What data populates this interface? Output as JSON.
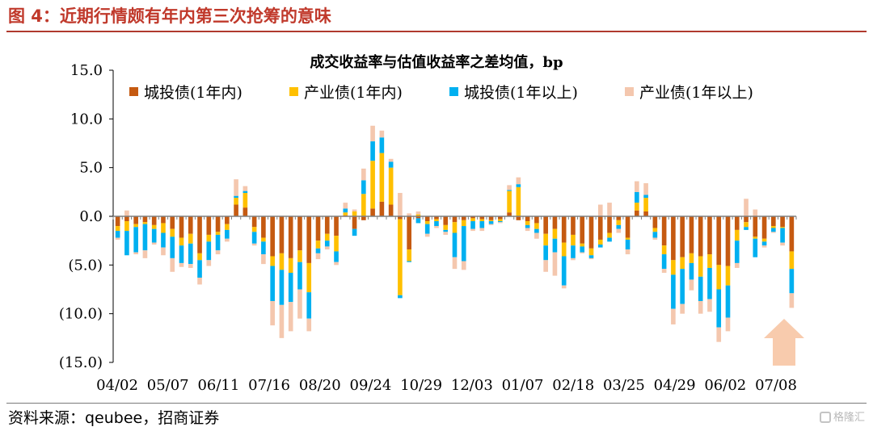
{
  "figure_title": "图 4：近期行情颇有年内第三次抢筹的意味",
  "source": "资料来源：qeubee，招商证券",
  "watermark": "格隆汇",
  "colors": {
    "title": "#c0392b",
    "chengtou_1y_in": "#c55a11",
    "chanye_1y_in": "#ffc000",
    "chengtou_1y_plus": "#00b0f0",
    "chanye_1y_plus": "#f4c7ae",
    "arrow": "#f8cbad"
  },
  "chart_data": {
    "type": "bar",
    "stacked": true,
    "title": "成交收益率与估值收益率之差均值，bp",
    "ylim": [
      -15,
      15
    ],
    "yticks": [
      15,
      10,
      5,
      0,
      -5,
      -10,
      -15
    ],
    "ytick_labels": [
      "15.0",
      "10.0",
      "5.0",
      "0.0",
      "(5.0)",
      "(10.0)",
      "(15.0)"
    ],
    "xtick_labels": [
      "04/02",
      "05/07",
      "06/11",
      "07/16",
      "08/20",
      "09/24",
      "10/29",
      "12/03",
      "01/07",
      "02/18",
      "03/25",
      "04/29",
      "06/02",
      "07/08"
    ],
    "legend_position": "top",
    "series": [
      {
        "name": "城投债(1年内)",
        "color": "#c55a11",
        "values": [
          -1.0,
          -0.5,
          -0.8,
          -0.6,
          -0.9,
          -0.7,
          -1.3,
          -2.2,
          -1.8,
          -3.8,
          -1.9,
          -1.6,
          -0.8,
          1.2,
          0.9,
          -1.1,
          -2.2,
          -4.1,
          -3.8,
          -4.3,
          -3.5,
          -4.8,
          -2.5,
          -1.8,
          -2.0,
          0.1,
          -1.3,
          -0.4,
          0.8,
          1.5,
          1.2,
          -0.3,
          -3.4,
          -0.2,
          -0.5,
          -0.3,
          -0.9,
          -0.6,
          -0.4,
          -0.2,
          -0.3,
          -0.4,
          -0.3,
          0.4,
          -0.4,
          -0.5,
          -0.7,
          -1.8,
          -1.3,
          -2.7,
          -1.9,
          -2.8,
          -3.3,
          -2.4,
          -1.7,
          -0.4,
          -2.2,
          0.6,
          0.5,
          -1.2,
          -3.0,
          -4.5,
          -4.2,
          -3.8,
          -4.1,
          -3.9,
          -5.0,
          -5.1,
          -1.4,
          -0.6,
          -2.1,
          -2.3,
          -1.0,
          -1.1,
          -3.6
        ],
        "labels_hidden": true
      },
      {
        "name": "产业债(1年内)",
        "color": "#ffc000",
        "values": [
          -0.5,
          -1.0,
          -0.3,
          -0.2,
          -0.4,
          -1.0,
          -0.8,
          -0.8,
          -1.0,
          -0.7,
          -0.7,
          -0.3,
          -0.6,
          0.7,
          1.5,
          -0.5,
          -0.4,
          -1.0,
          -1.7,
          -1.5,
          -1.2,
          -3.0,
          -0.8,
          -0.7,
          -1.6,
          0.3,
          0.5,
          2.3,
          4.9,
          5.0,
          3.8,
          -7.8,
          -1.2,
          0.2,
          -0.3,
          -0.2,
          -0.5,
          -1.1,
          -0.6,
          -0.3,
          -0.2,
          -0.1,
          -0.2,
          2.2,
          3.0,
          -0.4,
          -0.6,
          -1.2,
          -1.0,
          -1.4,
          -1.1,
          -0.3,
          -0.7,
          -0.5,
          -0.5,
          -0.5,
          -0.2,
          0.8,
          1.4,
          -0.4,
          -0.9,
          -1.5,
          -1.2,
          -1.0,
          -2.1,
          -1.4,
          -2.5,
          -2.0,
          -1.1,
          -0.5,
          -0.2,
          -0.3,
          -0.2,
          -0.1,
          -1.8
        ],
        "labels_hidden": true
      },
      {
        "name": "城投债(1年以上)",
        "color": "#00b0f0",
        "values": [
          -0.7,
          -2.5,
          -2.6,
          -2.7,
          -1.4,
          -1.5,
          -2.2,
          -1.8,
          -2.1,
          -1.8,
          -1.9,
          -1.6,
          -0.9,
          0.2,
          0.2,
          -1.2,
          -1.3,
          -3.6,
          -3.6,
          -3.0,
          -2.8,
          -2.7,
          -0.5,
          -0.6,
          -1.1,
          0.4,
          -0.7,
          1.4,
          2.0,
          1.6,
          0.6,
          -0.3,
          -0.1,
          -0.5,
          -1.0,
          -0.5,
          -0.2,
          -2.5,
          -3.6,
          -0.8,
          -0.7,
          -0.3,
          -0.1,
          0.1,
          0.3,
          -0.3,
          -0.4,
          -1.5,
          -1.4,
          -3.0,
          -1.3,
          -0.6,
          -0.3,
          -0.3,
          -0.4,
          -0.4,
          -1.0,
          1.1,
          0.3,
          -0.6,
          -1.5,
          -3.5,
          -3.6,
          -1.7,
          -2.5,
          -3.2,
          -3.9,
          -3.3,
          -2.3,
          -0.3,
          -1.9,
          -0.4,
          -0.4,
          -1.5,
          -2.5
        ],
        "labels_hidden": true
      },
      {
        "name": "产业债(1年以上)",
        "color": "#f4c7ae",
        "values": [
          -0.2,
          0.6,
          -0.2,
          -0.8,
          -0.2,
          -0.8,
          -1.4,
          -0.4,
          -0.4,
          -0.7,
          -0.6,
          -0.4,
          -0.3,
          1.7,
          0.5,
          -0.2,
          -1.0,
          -2.5,
          -3.4,
          -3.0,
          -3.0,
          -1.3,
          -0.6,
          -0.3,
          -0.3,
          0.6,
          0.2,
          1.2,
          1.6,
          0.7,
          0.3,
          2.4,
          0.3,
          0.3,
          -0.3,
          -0.2,
          -0.3,
          -1.2,
          -0.9,
          -0.2,
          -0.3,
          -0.1,
          -0.1,
          0.5,
          0.7,
          -0.3,
          -0.6,
          -1.2,
          -2.4,
          -0.3,
          -0.2,
          -0.1,
          -0.1,
          1.2,
          1.4,
          -0.4,
          -0.5,
          1.1,
          1.2,
          -0.2,
          -0.4,
          -1.6,
          -1.0,
          -1.1,
          -1.3,
          -1.3,
          -1.5,
          -1.4,
          -0.5,
          1.8,
          0.7,
          -0.2,
          -0.1,
          -0.3,
          -1.5
        ],
        "labels_hidden": true
      }
    ]
  }
}
